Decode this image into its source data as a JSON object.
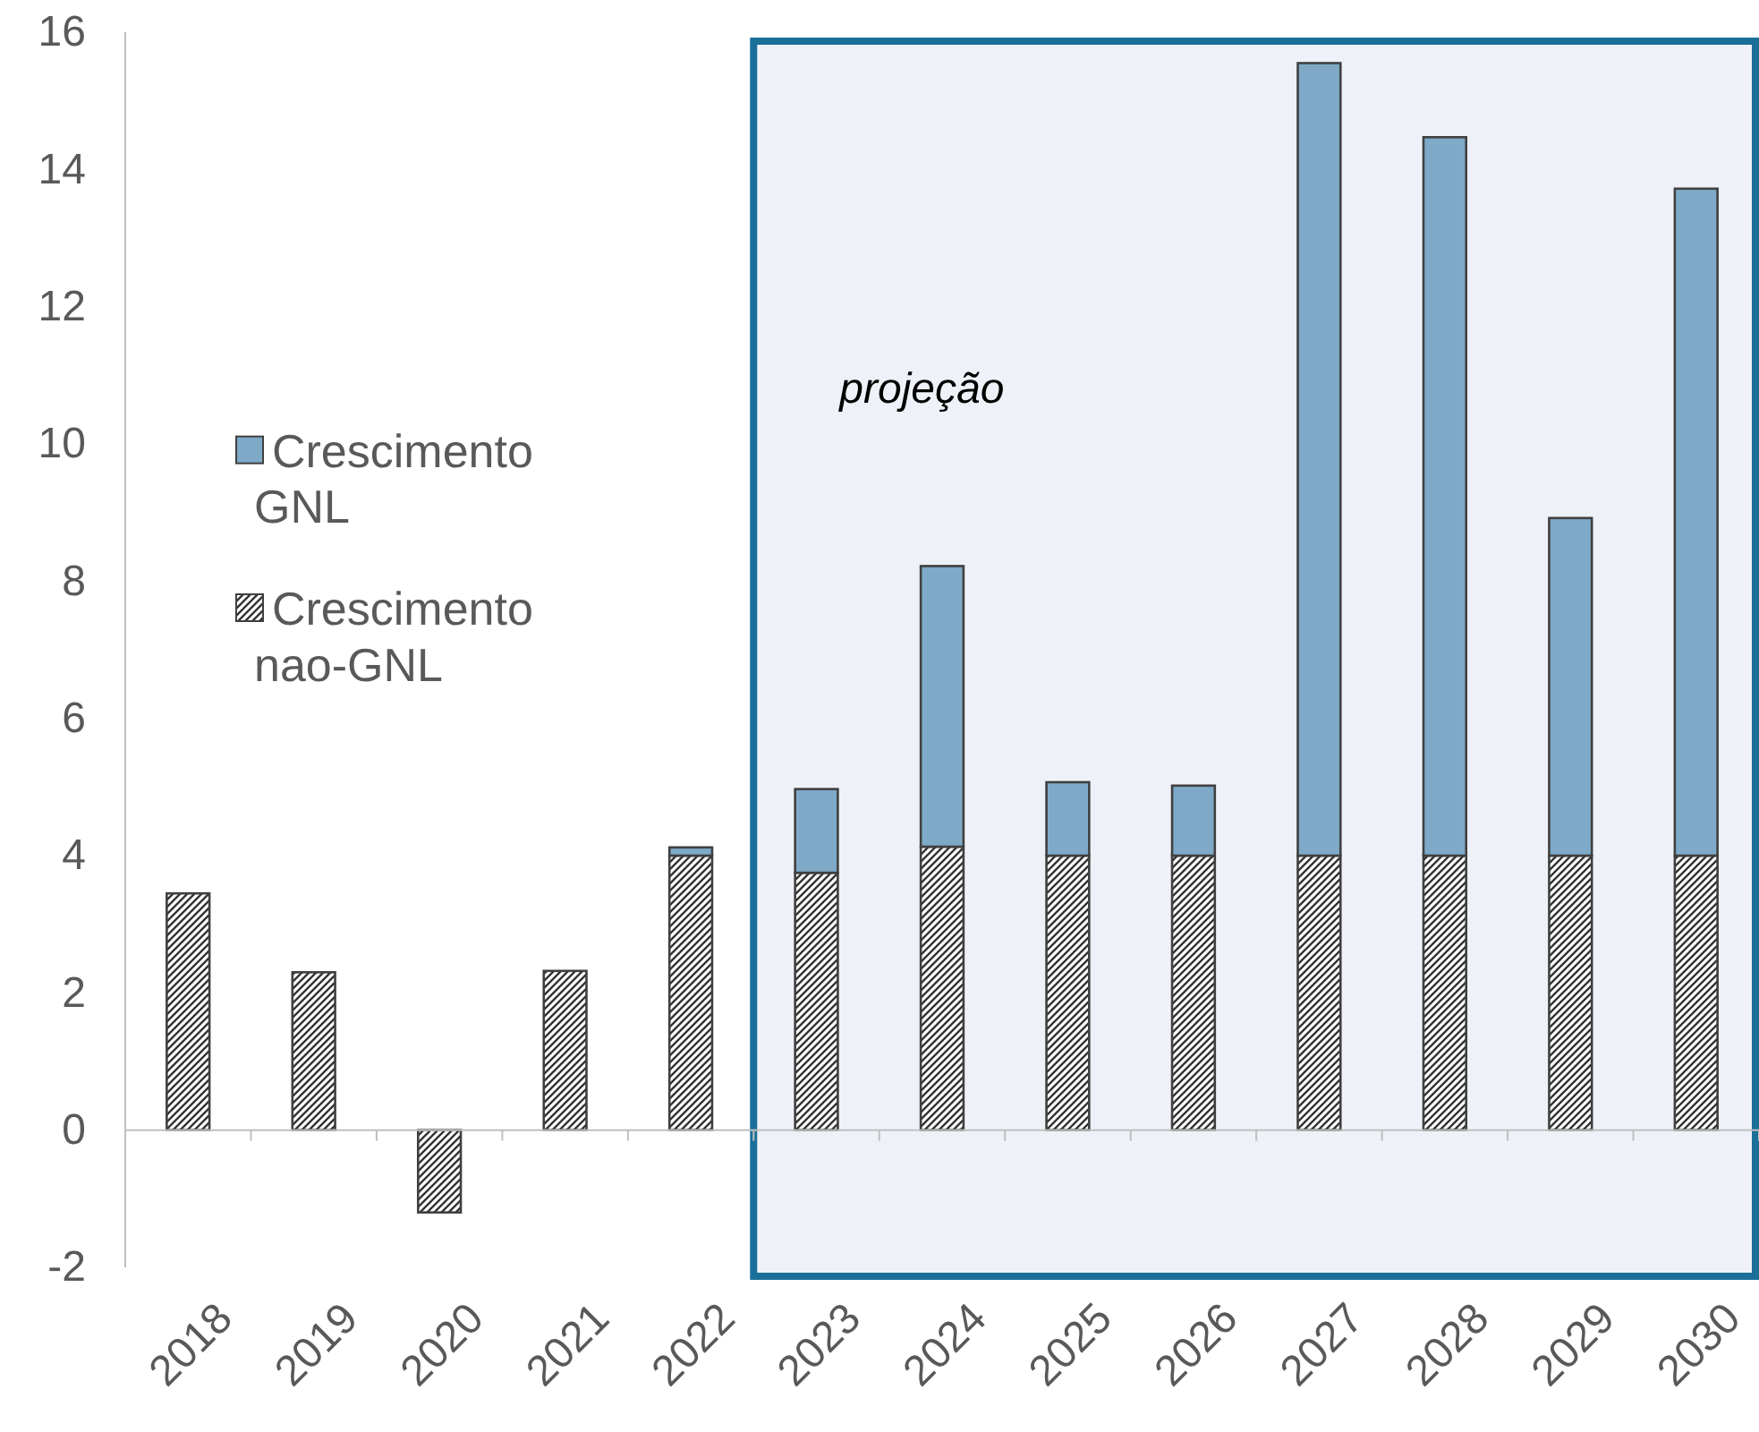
{
  "chart_data": {
    "type": "bar",
    "stacked": true,
    "categories": [
      "2018",
      "2019",
      "2020",
      "2021",
      "2022",
      "2023",
      "2024",
      "2025",
      "2026",
      "2027",
      "2028",
      "2029",
      "2030"
    ],
    "series": [
      {
        "name": "Crescimento nao-GNL",
        "color": "#333333",
        "values": [
          3.45,
          2.3,
          -1.2,
          2.32,
          4.0,
          3.75,
          4.13,
          4.0,
          4.0,
          4.0,
          4.0,
          4.0,
          4.0
        ]
      },
      {
        "name": "Crescimento GNL",
        "color": "#7eaac8",
        "values": [
          null,
          null,
          null,
          null,
          0.12,
          1.22,
          4.09,
          1.07,
          1.02,
          11.55,
          10.47,
          4.92,
          9.72
        ]
      }
    ],
    "ylim": [
      -2,
      16
    ],
    "yticks": [
      -2,
      0,
      2,
      4,
      6,
      8,
      10,
      12,
      14,
      16
    ],
    "bands": [
      {
        "axis": "x",
        "from": "2023",
        "to": "2030",
        "label": "projeção",
        "color": "#eef2f8"
      }
    ],
    "legend": "left"
  }
}
